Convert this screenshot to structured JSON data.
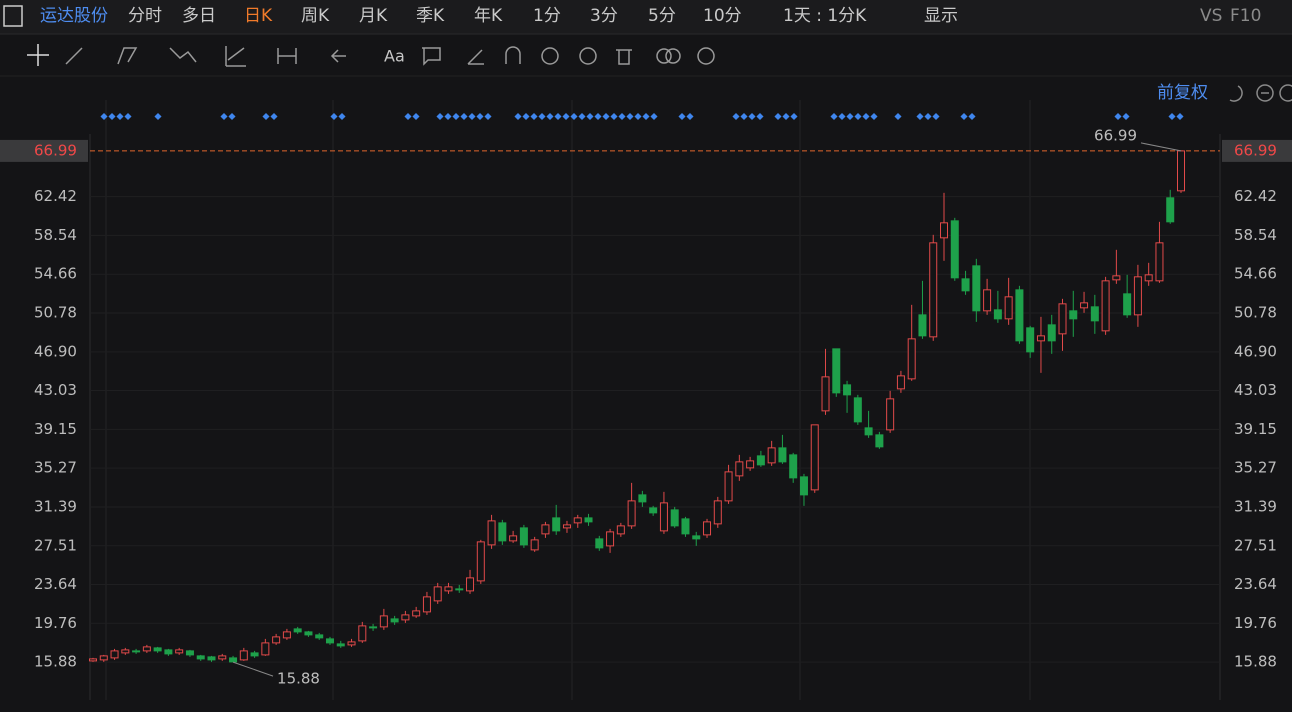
{
  "toolbar": {
    "items": [
      "运达股份",
      "分时",
      "多日",
      "日K",
      "周K",
      "月K",
      "季K",
      "年K",
      "1分",
      "3分",
      "5分",
      "10分",
      "1天 : 1分K",
      "显示",
      "VS",
      "F10"
    ],
    "active": "日K"
  },
  "chart_data": {
    "type": "candlestick",
    "adjust_label": "前复权",
    "up_color": "#e24a4a",
    "down_color": "#1ea14b",
    "ylim": [
      12.09,
      74.48
    ],
    "yticks": [
      15.88,
      19.76,
      23.64,
      27.51,
      31.39,
      35.27,
      39.15,
      43.03,
      {
        "value": 46.9,
        "label": "46.90"
      },
      50.78,
      54.66,
      58.54,
      62.42
    ],
    "last_price": 66.99,
    "max_marker": 66.99,
    "min_marker": 15.88,
    "open": [
      16.0,
      16.1,
      16.3,
      16.8,
      17.0,
      17.0,
      17.3,
      17.1,
      16.8,
      17.0,
      16.5,
      16.4,
      16.2,
      16.3,
      16.1,
      16.8,
      16.6,
      17.8,
      18.3,
      19.2,
      18.9,
      18.6,
      18.2,
      17.7,
      17.6,
      18.0,
      19.4,
      19.4,
      20.2,
      20.1,
      20.5,
      20.9,
      22.0,
      23.0,
      23.2,
      23.0,
      24.0,
      27.6,
      29.8,
      28.0,
      29.3,
      27.1,
      28.7,
      30.3,
      29.3,
      29.8,
      30.3,
      28.2,
      27.5,
      28.7,
      29.5,
      32.6,
      31.3,
      29.0,
      31.1,
      30.2,
      28.5,
      28.6,
      29.7,
      32.0,
      34.5,
      35.3,
      36.5,
      35.8,
      37.3,
      36.6,
      34.4,
      33.1,
      41.0,
      47.2,
      43.6,
      42.3,
      39.3,
      38.6,
      39.1,
      43.2,
      44.2,
      50.6,
      48.4,
      58.3,
      60.0,
      54.2,
      55.5,
      51.0,
      51.1,
      50.2,
      53.1,
      49.3,
      48.0,
      49.6,
      48.7,
      51.0,
      51.3,
      51.4,
      49.0,
      54.1,
      52.7,
      50.6,
      54.0,
      54.0,
      62.3,
      63.0
    ],
    "high": [
      16.3,
      16.6,
      17.2,
      17.3,
      17.2,
      17.6,
      17.4,
      17.2,
      17.3,
      17.1,
      16.6,
      16.5,
      16.7,
      16.5,
      17.3,
      17.0,
      18.2,
      18.7,
      19.2,
      19.4,
      19.0,
      18.8,
      18.4,
      18.0,
      18.2,
      19.9,
      19.7,
      21.2,
      20.5,
      21.0,
      21.4,
      22.9,
      23.8,
      23.8,
      23.6,
      25.1,
      28.1,
      30.6,
      30.1,
      29.0,
      29.6,
      28.4,
      29.9,
      31.6,
      30.0,
      30.6,
      30.7,
      28.5,
      29.2,
      29.8,
      33.8,
      33.0,
      31.5,
      32.9,
      31.4,
      30.4,
      28.9,
      30.2,
      32.4,
      35.6,
      36.6,
      36.4,
      37.0,
      38.0,
      38.6,
      36.8,
      34.7,
      39.6,
      47.2,
      47.2,
      44.0,
      42.6,
      41.0,
      38.9,
      43.0,
      45.0,
      51.6,
      54.0,
      58.6,
      62.8,
      60.3,
      55.0,
      56.2,
      54.2,
      53.0,
      54.3,
      53.5,
      49.5,
      50.4,
      50.6,
      52.2,
      53.0,
      52.9,
      52.6,
      54.4,
      57.1,
      54.6,
      55.6,
      55.8,
      59.9,
      63.1,
      66.99
    ],
    "low": [
      15.9,
      15.9,
      16.1,
      16.6,
      16.7,
      16.8,
      16.8,
      16.5,
      16.6,
      16.4,
      16.0,
      15.9,
      16.0,
      15.88,
      16.0,
      16.3,
      16.5,
      17.6,
      18.1,
      18.7,
      18.4,
      18.1,
      17.6,
      17.3,
      17.4,
      17.8,
      19.0,
      19.1,
      19.6,
      19.8,
      20.3,
      20.6,
      21.7,
      22.7,
      22.8,
      22.7,
      23.7,
      27.2,
      27.6,
      27.8,
      27.3,
      26.9,
      28.3,
      28.6,
      28.8,
      29.3,
      29.5,
      27.0,
      26.8,
      28.4,
      29.2,
      31.4,
      30.5,
      28.7,
      29.3,
      28.4,
      27.5,
      28.3,
      29.3,
      31.7,
      34.0,
      35.0,
      35.4,
      35.5,
      35.7,
      33.8,
      31.5,
      32.8,
      40.6,
      42.4,
      40.8,
      39.6,
      38.3,
      37.2,
      38.8,
      42.8,
      44.0,
      48.2,
      48.0,
      56.0,
      54.0,
      52.6,
      49.9,
      50.6,
      49.8,
      49.6,
      47.7,
      46.3,
      44.8,
      46.7,
      47.0,
      48.4,
      50.8,
      48.7,
      48.6,
      53.7,
      50.3,
      49.4,
      53.5,
      53.8,
      59.7,
      62.8
    ],
    "close": [
      16.2,
      16.5,
      17.0,
      17.1,
      16.9,
      17.4,
      17.0,
      16.7,
      17.1,
      16.6,
      16.2,
      16.1,
      16.5,
      15.9,
      17.0,
      16.5,
      17.8,
      18.4,
      18.9,
      18.9,
      18.6,
      18.3,
      17.8,
      17.5,
      17.9,
      19.5,
      19.3,
      20.5,
      19.9,
      20.6,
      21.0,
      22.4,
      23.4,
      23.4,
      23.1,
      24.3,
      27.9,
      30.0,
      28.0,
      28.5,
      27.6,
      28.1,
      29.6,
      29.0,
      29.6,
      30.3,
      29.9,
      27.3,
      28.9,
      29.5,
      32.0,
      31.9,
      30.8,
      31.8,
      29.5,
      28.7,
      28.2,
      29.9,
      32.0,
      34.9,
      35.9,
      36.0,
      35.6,
      37.3,
      35.9,
      34.3,
      32.6,
      39.6,
      44.4,
      42.8,
      42.6,
      39.9,
      38.6,
      37.4,
      42.2,
      44.5,
      48.2,
      48.5,
      57.8,
      59.8,
      54.3,
      53.0,
      51.0,
      53.1,
      50.2,
      52.4,
      48.0,
      46.9,
      48.5,
      48.0,
      51.7,
      50.2,
      51.8,
      50.0,
      54.0,
      54.5,
      50.6,
      54.4,
      54.6,
      57.8,
      59.9,
      66.99
    ]
  }
}
